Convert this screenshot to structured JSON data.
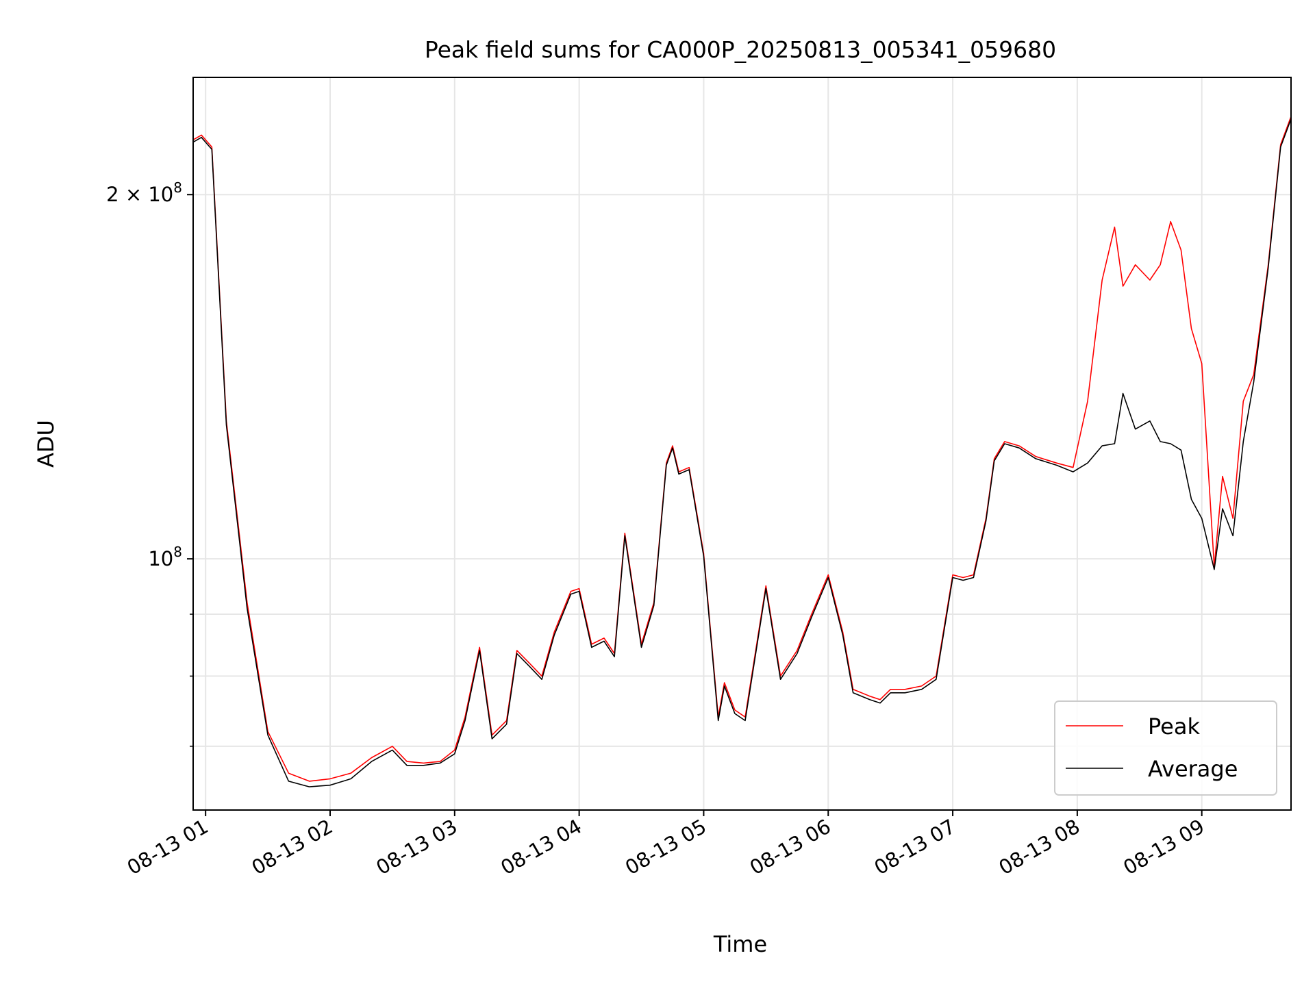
{
  "chart_data": {
    "type": "line",
    "title": "Peak field sums for CA000P_20250813_005341_059680",
    "xlabel": "Time",
    "ylabel": "ADU",
    "y_scale": "log",
    "grid": true,
    "legend_position": "lower-right",
    "xlim": [
      "2025-08-13 00:54",
      "2025-08-13 09:43"
    ],
    "ylim": [
      62000000,
      250000000
    ],
    "x_ticks": [
      "08-13 01",
      "08-13 02",
      "08-13 03",
      "08-13 04",
      "08-13 05",
      "08-13 06",
      "08-13 07",
      "08-13 08",
      "08-13 09"
    ],
    "y_ticks": [
      {
        "value": 100000000,
        "mantissa": "",
        "base": "10",
        "exponent": "8"
      },
      {
        "value": 200000000,
        "mantissa": "2 × ",
        "base": "10",
        "exponent": "8"
      }
    ],
    "y_minor_ticks": [
      70000000,
      80000000,
      90000000
    ],
    "series": [
      {
        "name": "Peak",
        "color": "#ff0000",
        "x": [
          "2025-08-13 00:54",
          "2025-08-13 00:58",
          "2025-08-13 01:03",
          "2025-08-13 01:10",
          "2025-08-13 01:20",
          "2025-08-13 01:30",
          "2025-08-13 01:40",
          "2025-08-13 01:50",
          "2025-08-13 02:00",
          "2025-08-13 02:10",
          "2025-08-13 02:20",
          "2025-08-13 02:30",
          "2025-08-13 02:37",
          "2025-08-13 02:45",
          "2025-08-13 02:53",
          "2025-08-13 03:00",
          "2025-08-13 03:05",
          "2025-08-13 03:12",
          "2025-08-13 03:18",
          "2025-08-13 03:25",
          "2025-08-13 03:30",
          "2025-08-13 03:36",
          "2025-08-13 03:42",
          "2025-08-13 03:48",
          "2025-08-13 03:56",
          "2025-08-13 04:00",
          "2025-08-13 04:06",
          "2025-08-13 04:12",
          "2025-08-13 04:17",
          "2025-08-13 04:22",
          "2025-08-13 04:30",
          "2025-08-13 04:36",
          "2025-08-13 04:42",
          "2025-08-13 04:45",
          "2025-08-13 04:48",
          "2025-08-13 04:53",
          "2025-08-13 05:00",
          "2025-08-13 05:07",
          "2025-08-13 05:10",
          "2025-08-13 05:15",
          "2025-08-13 05:20",
          "2025-08-13 05:30",
          "2025-08-13 05:37",
          "2025-08-13 05:45",
          "2025-08-13 05:52",
          "2025-08-13 06:00",
          "2025-08-13 06:07",
          "2025-08-13 06:12",
          "2025-08-13 06:20",
          "2025-08-13 06:25",
          "2025-08-13 06:30",
          "2025-08-13 06:37",
          "2025-08-13 06:45",
          "2025-08-13 06:52",
          "2025-08-13 07:00",
          "2025-08-13 07:05",
          "2025-08-13 07:10",
          "2025-08-13 07:16",
          "2025-08-13 07:20",
          "2025-08-13 07:25",
          "2025-08-13 07:32",
          "2025-08-13 07:40",
          "2025-08-13 07:50",
          "2025-08-13 07:58",
          "2025-08-13 08:05",
          "2025-08-13 08:12",
          "2025-08-13 08:18",
          "2025-08-13 08:22",
          "2025-08-13 08:28",
          "2025-08-13 08:35",
          "2025-08-13 08:40",
          "2025-08-13 08:45",
          "2025-08-13 08:50",
          "2025-08-13 08:55",
          "2025-08-13 09:00",
          "2025-08-13 09:06",
          "2025-08-13 09:10",
          "2025-08-13 09:15",
          "2025-08-13 09:20",
          "2025-08-13 09:25",
          "2025-08-13 09:32",
          "2025-08-13 09:38",
          "2025-08-13 09:43"
        ],
        "y": [
          222000000,
          224000000,
          219000000,
          130000000,
          92000000,
          72000000,
          66500000,
          65500000,
          65800000,
          66500000,
          68500000,
          70000000,
          68000000,
          67800000,
          68000000,
          69500000,
          74000000,
          84500000,
          71500000,
          73500000,
          84000000,
          82000000,
          80000000,
          87000000,
          94000000,
          94500000,
          85000000,
          86000000,
          83500000,
          105000000,
          85000000,
          92000000,
          120000000,
          124000000,
          118000000,
          119000000,
          101000000,
          74000000,
          79000000,
          75000000,
          74000000,
          95000000,
          80000000,
          84000000,
          90000000,
          97000000,
          87000000,
          78000000,
          77000000,
          76500000,
          78000000,
          78000000,
          78500000,
          80000000,
          97000000,
          96500000,
          97000000,
          108000000,
          121000000,
          125000000,
          124000000,
          121500000,
          120000000,
          119000000,
          135000000,
          170000000,
          188000000,
          168000000,
          175000000,
          170000000,
          175000000,
          190000000,
          180000000,
          155000000,
          145000000,
          98500000,
          117000000,
          108000000,
          135000000,
          142000000,
          175000000,
          220000000,
          232000000
        ]
      },
      {
        "name": "Average",
        "color": "#000000",
        "x": [
          "2025-08-13 00:54",
          "2025-08-13 00:58",
          "2025-08-13 01:03",
          "2025-08-13 01:10",
          "2025-08-13 01:20",
          "2025-08-13 01:30",
          "2025-08-13 01:40",
          "2025-08-13 01:50",
          "2025-08-13 02:00",
          "2025-08-13 02:10",
          "2025-08-13 02:20",
          "2025-08-13 02:30",
          "2025-08-13 02:37",
          "2025-08-13 02:45",
          "2025-08-13 02:53",
          "2025-08-13 03:00",
          "2025-08-13 03:05",
          "2025-08-13 03:12",
          "2025-08-13 03:18",
          "2025-08-13 03:25",
          "2025-08-13 03:30",
          "2025-08-13 03:36",
          "2025-08-13 03:42",
          "2025-08-13 03:48",
          "2025-08-13 03:56",
          "2025-08-13 04:00",
          "2025-08-13 04:06",
          "2025-08-13 04:12",
          "2025-08-13 04:17",
          "2025-08-13 04:22",
          "2025-08-13 04:30",
          "2025-08-13 04:36",
          "2025-08-13 04:42",
          "2025-08-13 04:45",
          "2025-08-13 04:48",
          "2025-08-13 04:53",
          "2025-08-13 05:00",
          "2025-08-13 05:07",
          "2025-08-13 05:10",
          "2025-08-13 05:15",
          "2025-08-13 05:20",
          "2025-08-13 05:30",
          "2025-08-13 05:37",
          "2025-08-13 05:45",
          "2025-08-13 05:52",
          "2025-08-13 06:00",
          "2025-08-13 06:07",
          "2025-08-13 06:12",
          "2025-08-13 06:20",
          "2025-08-13 06:25",
          "2025-08-13 06:30",
          "2025-08-13 06:37",
          "2025-08-13 06:45",
          "2025-08-13 06:52",
          "2025-08-13 07:00",
          "2025-08-13 07:05",
          "2025-08-13 07:10",
          "2025-08-13 07:16",
          "2025-08-13 07:20",
          "2025-08-13 07:25",
          "2025-08-13 07:32",
          "2025-08-13 07:40",
          "2025-08-13 07:50",
          "2025-08-13 07:58",
          "2025-08-13 08:05",
          "2025-08-13 08:12",
          "2025-08-13 08:18",
          "2025-08-13 08:22",
          "2025-08-13 08:28",
          "2025-08-13 08:35",
          "2025-08-13 08:40",
          "2025-08-13 08:45",
          "2025-08-13 08:50",
          "2025-08-13 08:55",
          "2025-08-13 09:00",
          "2025-08-13 09:06",
          "2025-08-13 09:10",
          "2025-08-13 09:15",
          "2025-08-13 09:20",
          "2025-08-13 09:25",
          "2025-08-13 09:32",
          "2025-08-13 09:38",
          "2025-08-13 09:43"
        ],
        "y": [
          221000000,
          223000000,
          218000000,
          129000000,
          91000000,
          71500000,
          65500000,
          64800000,
          65000000,
          65800000,
          68000000,
          69500000,
          67500000,
          67500000,
          67800000,
          69000000,
          73500000,
          84000000,
          71000000,
          73000000,
          83500000,
          81500000,
          79500000,
          86500000,
          93500000,
          94000000,
          84500000,
          85500000,
          83000000,
          104500000,
          84500000,
          91500000,
          119500000,
          123500000,
          117500000,
          118500000,
          100500000,
          73500000,
          78500000,
          74500000,
          73500000,
          94500000,
          79500000,
          83500000,
          89500000,
          96500000,
          86500000,
          77500000,
          76500000,
          76000000,
          77500000,
          77500000,
          78000000,
          79500000,
          96500000,
          96000000,
          96500000,
          107500000,
          120500000,
          124500000,
          123500000,
          121000000,
          119500000,
          118000000,
          120000000,
          124000000,
          124500000,
          137000000,
          128000000,
          130000000,
          125000000,
          124500000,
          123000000,
          112000000,
          108000000,
          98000000,
          110000000,
          104500000,
          125000000,
          140000000,
          174000000,
          219000000,
          231000000
        ]
      }
    ]
  }
}
